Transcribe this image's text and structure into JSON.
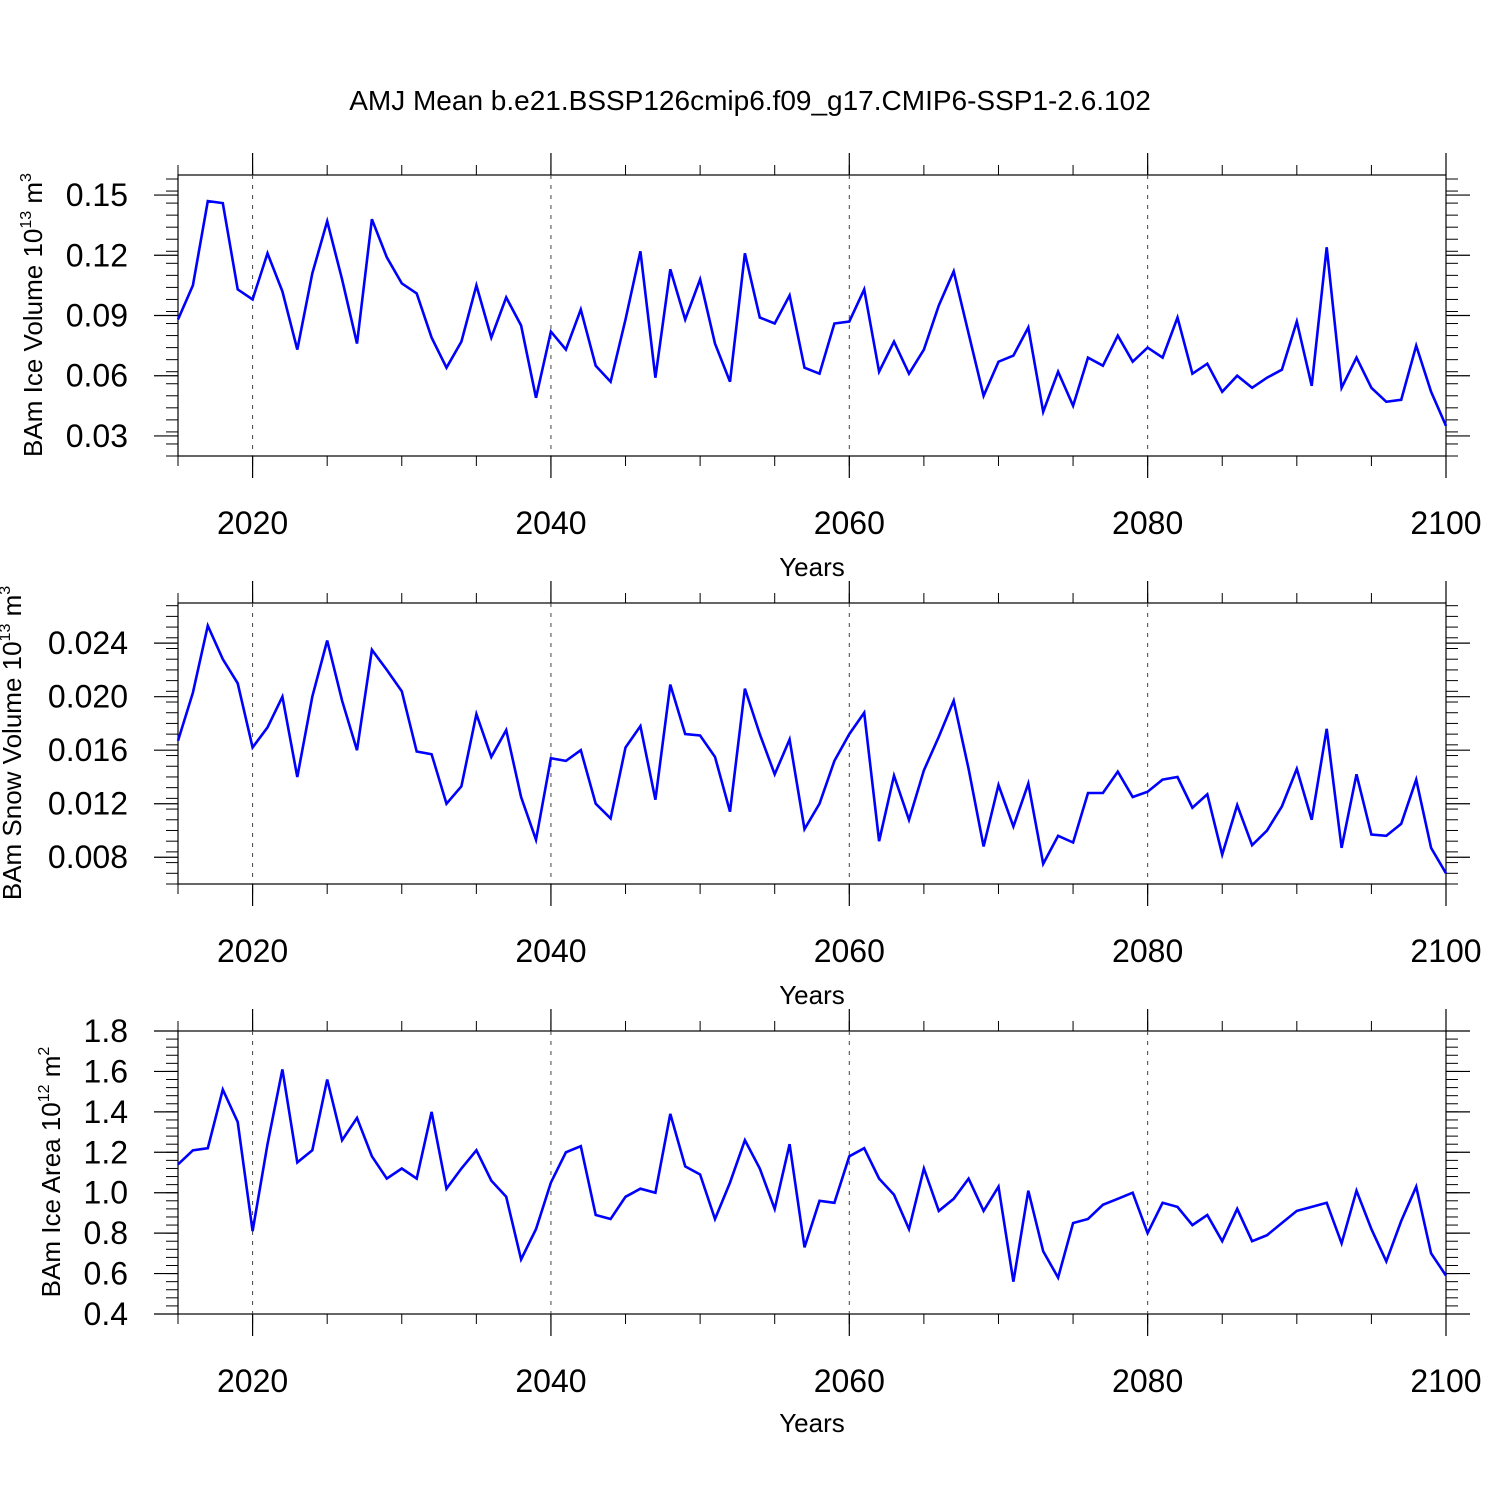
{
  "figure_title": "AMJ Mean b.e21.BSSP126cmip6.f09_g17.CMIP6-SSP1-2.6.102",
  "line_color": "#0000ff",
  "chart_data": [
    {
      "type": "line",
      "xlabel": "Years",
      "ylabel_main": "BAm Ice Volume 10",
      "ylabel_exp": "13",
      "ylabel_unit": " m",
      "ylabel_unit_exp": "3",
      "xlim": [
        2015,
        2100
      ],
      "ylim": [
        0.02,
        0.16
      ],
      "xticks": [
        2020,
        2040,
        2060,
        2080,
        2100
      ],
      "xtick_labels": [
        "2020",
        "2040",
        "2060",
        "2080",
        "2100"
      ],
      "yticks": [
        0.03,
        0.06,
        0.09,
        0.12,
        0.15
      ],
      "ytick_labels": [
        "0.03",
        "0.06",
        "0.09",
        "0.12",
        "0.15"
      ],
      "grid_x_dashed": [
        2020,
        2040,
        2060,
        2080
      ],
      "x_start": 2015,
      "values": [
        0.088,
        0.105,
        0.147,
        0.146,
        0.103,
        0.098,
        0.121,
        0.102,
        0.073,
        0.111,
        0.137,
        0.108,
        0.076,
        0.138,
        0.119,
        0.106,
        0.101,
        0.079,
        0.064,
        0.077,
        0.105,
        0.079,
        0.099,
        0.085,
        0.049,
        0.082,
        0.073,
        0.093,
        0.065,
        0.057,
        0.088,
        0.122,
        0.059,
        0.113,
        0.088,
        0.108,
        0.076,
        0.057,
        0.121,
        0.089,
        0.086,
        0.1,
        0.064,
        0.061,
        0.086,
        0.087,
        0.103,
        0.062,
        0.077,
        0.061,
        0.073,
        0.095,
        0.112,
        0.081,
        0.05,
        0.067,
        0.07,
        0.084,
        0.042,
        0.062,
        0.045,
        0.069,
        0.065,
        0.08,
        0.067,
        0.074,
        0.069,
        0.089,
        0.061,
        0.066,
        0.052,
        0.06,
        0.054,
        0.059,
        0.063,
        0.087,
        0.055,
        0.124,
        0.054,
        0.069,
        0.054,
        0.047,
        0.048,
        0.075,
        0.052,
        0.035
      ]
    },
    {
      "type": "line",
      "xlabel": "Years",
      "ylabel_main": "BAm Snow Volume 10",
      "ylabel_exp": "13",
      "ylabel_unit": " m",
      "ylabel_unit_exp": "3",
      "xlim": [
        2015,
        2100
      ],
      "ylim": [
        0.006,
        0.027
      ],
      "xticks": [
        2020,
        2040,
        2060,
        2080,
        2100
      ],
      "xtick_labels": [
        "2020",
        "2040",
        "2060",
        "2080",
        "2100"
      ],
      "yticks": [
        0.008,
        0.012,
        0.016,
        0.02,
        0.024
      ],
      "ytick_labels": [
        "0.008",
        "0.012",
        "0.016",
        "0.020",
        "0.024"
      ],
      "grid_x_dashed": [
        2020,
        2040,
        2060,
        2080
      ],
      "x_start": 2015,
      "values": [
        0.0167,
        0.0203,
        0.0253,
        0.0228,
        0.021,
        0.0162,
        0.0177,
        0.02,
        0.014,
        0.02,
        0.0242,
        0.0197,
        0.016,
        0.0235,
        0.022,
        0.0204,
        0.0159,
        0.0157,
        0.012,
        0.0133,
        0.0187,
        0.0155,
        0.0175,
        0.0125,
        0.0093,
        0.0154,
        0.0152,
        0.016,
        0.012,
        0.0109,
        0.0162,
        0.0178,
        0.0123,
        0.0209,
        0.0172,
        0.0171,
        0.0155,
        0.0114,
        0.0206,
        0.0172,
        0.0142,
        0.0168,
        0.0101,
        0.012,
        0.0152,
        0.0172,
        0.0188,
        0.0092,
        0.0141,
        0.0108,
        0.0145,
        0.017,
        0.0197,
        0.0146,
        0.0088,
        0.0134,
        0.0103,
        0.0135,
        0.0075,
        0.0096,
        0.0091,
        0.0128,
        0.0128,
        0.0144,
        0.0125,
        0.0129,
        0.0138,
        0.014,
        0.0117,
        0.0127,
        0.0082,
        0.0119,
        0.0089,
        0.01,
        0.0118,
        0.0146,
        0.0108,
        0.0176,
        0.0087,
        0.0142,
        0.0097,
        0.0096,
        0.0105,
        0.0138,
        0.0087,
        0.0068
      ]
    },
    {
      "type": "line",
      "xlabel": "Years",
      "ylabel_main": "BAm Ice Area 10",
      "ylabel_exp": "12",
      "ylabel_unit": " m",
      "ylabel_unit_exp": "2",
      "xlim": [
        2015,
        2100
      ],
      "ylim": [
        0.4,
        1.8
      ],
      "xticks": [
        2020,
        2040,
        2060,
        2080,
        2100
      ],
      "xtick_labels": [
        "2020",
        "2040",
        "2060",
        "2080",
        "2100"
      ],
      "yticks": [
        0.4,
        0.6,
        0.8,
        1.0,
        1.2,
        1.4,
        1.6,
        1.8
      ],
      "ytick_labels": [
        "0.4",
        "0.6",
        "0.8",
        "1.0",
        "1.2",
        "1.4",
        "1.6",
        "1.8"
      ],
      "grid_x_dashed": [
        2020,
        2040,
        2060,
        2080
      ],
      "x_start": 2015,
      "values": [
        1.14,
        1.21,
        1.22,
        1.51,
        1.35,
        0.81,
        1.24,
        1.61,
        1.15,
        1.21,
        1.56,
        1.26,
        1.37,
        1.18,
        1.07,
        1.12,
        1.07,
        1.4,
        1.02,
        1.12,
        1.21,
        1.06,
        0.98,
        0.67,
        0.82,
        1.05,
        1.2,
        1.23,
        0.89,
        0.87,
        0.98,
        1.02,
        1.0,
        1.39,
        1.13,
        1.09,
        0.87,
        1.05,
        1.26,
        1.12,
        0.92,
        1.24,
        0.73,
        0.96,
        0.95,
        1.18,
        1.22,
        1.07,
        0.99,
        0.82,
        1.12,
        0.91,
        0.97,
        1.07,
        0.91,
        1.03,
        0.56,
        1.01,
        0.71,
        0.58,
        0.85,
        0.87,
        0.94,
        0.97,
        1.0,
        0.8,
        0.95,
        0.93,
        0.84,
        0.89,
        0.76,
        0.92,
        0.76,
        0.79,
        0.85,
        0.91,
        0.93,
        0.95,
        0.75,
        1.01,
        0.82,
        0.66,
        0.86,
        1.03,
        0.7,
        0.59
      ]
    }
  ]
}
